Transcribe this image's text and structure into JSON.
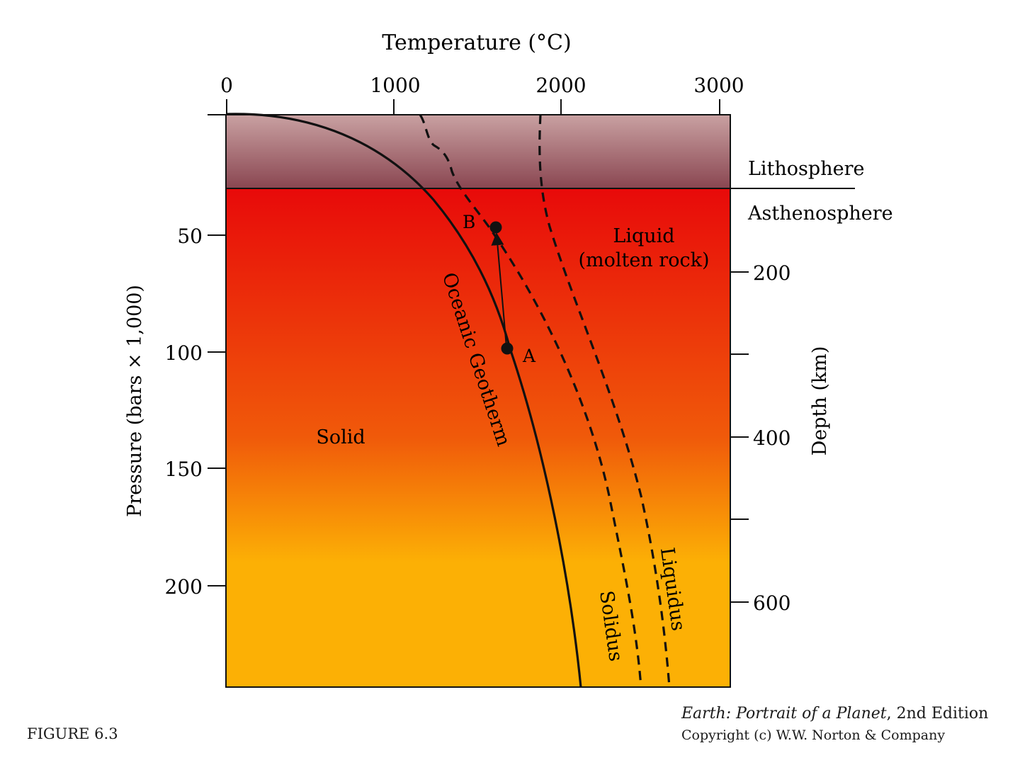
{
  "diagram": {
    "title": "Temperature (°C)",
    "temperature_ticks": [
      "0",
      "1000",
      "2000",
      "3000"
    ],
    "pressure_axis_label": "Pressure (bars × 1,000)",
    "pressure_ticks": [
      "50",
      "100",
      "150",
      "200"
    ],
    "depth_axis_label": "Depth (km)",
    "depth_ticks": [
      "200",
      "400",
      "600"
    ],
    "layers": {
      "upper": "Lithosphere",
      "lower": "Asthenosphere"
    },
    "regions": {
      "liquid_line1": "Liquid",
      "liquid_line2": "(molten rock)",
      "solid": "Solid"
    },
    "curves": {
      "geotherm": "Oceanic Geotherm",
      "solidus": "Solidus",
      "liquidus": "Liquidus"
    },
    "points": {
      "a": "A",
      "b": "B"
    },
    "colors": {
      "lithosphere_top": "#c9a1a2",
      "lithosphere_bottom": "#8a4651",
      "mantle_top": "#e80a0a",
      "mantle_mid": "#f05a0a",
      "mantle_bottom": "#fcb005"
    }
  },
  "footer": {
    "figure_number": "FIGURE 6.3",
    "book_title": "Earth: Portrait of a Planet",
    "edition": ", 2nd Edition",
    "copyright": "Copyright (c) W.W. Norton & Company"
  }
}
